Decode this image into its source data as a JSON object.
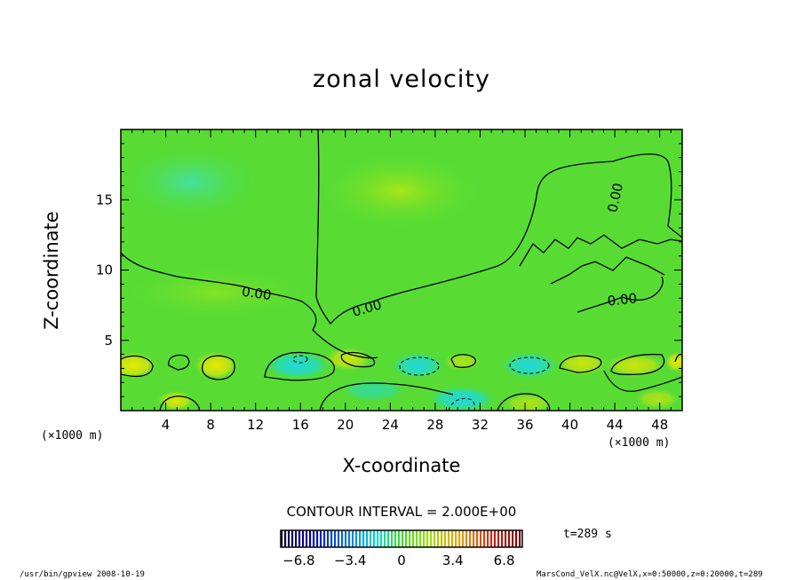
{
  "chart_data": {
    "type": "heatmap",
    "title": "zonal velocity",
    "xlabel": "X-coordinate",
    "ylabel": "Z-coordinate",
    "x_unit_left": "(×1000 m)",
    "x_unit_right": "(×1000 m)",
    "xlim": [
      0,
      50
    ],
    "ylim": [
      0,
      20
    ],
    "x_ticks": [
      4,
      8,
      12,
      16,
      20,
      24,
      28,
      32,
      36,
      40,
      44,
      48
    ],
    "y_ticks": [
      5,
      10,
      15
    ],
    "contour_labels": [
      "0.00",
      "0.00",
      "0.00",
      "0.00"
    ],
    "contour_interval_text": "CONTOUR INTERVAL = 2.000E+00",
    "colorbar": {
      "min": -8,
      "max": 8,
      "tick_values": [
        -6.8,
        -3.4,
        0,
        3.4,
        6.8
      ],
      "tick_labels": [
        "−6.8",
        "−3.4",
        "0",
        "3.4",
        "6.8"
      ]
    },
    "time_label": "t=289 s",
    "footer_left": "/usr/bin/gpview   2008-10-19",
    "footer_right": "MarsCond_VelX.nc@VelX,x=0:50000,z=0:20000,t=289",
    "colors": {
      "background_field": "#55dd33",
      "positive": "#e8e800",
      "negative": "#22d8d0",
      "contour": "#000000"
    }
  }
}
